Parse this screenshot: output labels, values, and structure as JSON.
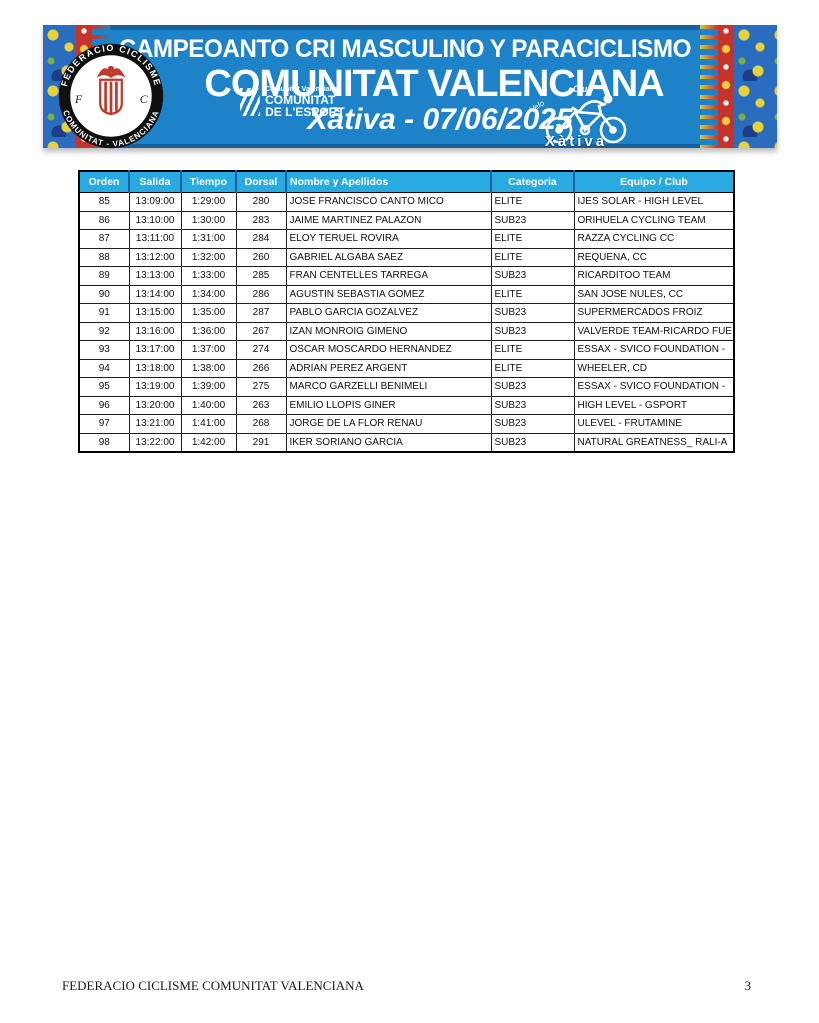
{
  "banner": {
    "line1": "CAMPEOANTO CRI MASCULINO Y PARACICLISMO",
    "line2": "COMUNITAT VALENCIANA",
    "line3": "Xàtiva - 07/06/2025",
    "federation_logo": {
      "arc_top": "FEDERACIO CICLISME",
      "arc_bottom": "COMUNITAT - VALENCIANA",
      "letter_left": "F",
      "letter_right": "C"
    },
    "esport_logo": {
      "small": "Comunitat Valenciana",
      "line1": "COMUNITAT",
      "line2": "DE L'ESPORT"
    },
    "club_logo": {
      "word_top": "Club",
      "word_left": "Velo",
      "name": "Xàtiva"
    },
    "colors": {
      "banner_blue": "#1e82c8",
      "header_blue": "#29abe2",
      "ornament_red": "#c5342b",
      "floral_yellow": "#e8d23a"
    }
  },
  "table": {
    "headers": [
      "Orden",
      "Salida",
      "Tiempo",
      "Dorsal",
      "Nombre y Apellidos",
      "Categoria",
      "Equipo / Club"
    ],
    "rows": [
      [
        "85",
        "13:09:00",
        "1:29:00",
        "280",
        "JOSE FRANCISCO CANTO MICO",
        "ELITE",
        "IJES SOLAR - HIGH LEVEL"
      ],
      [
        "86",
        "13:10:00",
        "1:30:00",
        "283",
        "JAIME MARTINEZ PALAZON",
        "SUB23",
        "ORIHUELA CYCLING TEAM"
      ],
      [
        "87",
        "13:11:00",
        "1:31:00",
        "284",
        "ELOY TERUEL ROVIRA",
        "ELITE",
        "RAZZA CYCLING CC"
      ],
      [
        "88",
        "13:12:00",
        "1:32:00",
        "260",
        "GABRIEL ALGABA SAEZ",
        "ELITE",
        "REQUENA, CC"
      ],
      [
        "89",
        "13:13:00",
        "1:33:00",
        "285",
        "FRAN CENTELLES TARREGA",
        "SUB23",
        "RICARDITOO TEAM"
      ],
      [
        "90",
        "13:14:00",
        "1:34:00",
        "286",
        "AGUSTIN SEBASTIA GOMEZ",
        "ELITE",
        "SAN JOSE NULES, CC"
      ],
      [
        "91",
        "13:15:00",
        "1:35:00",
        "287",
        "PABLO GARCIA GOZALVEZ",
        "SUB23",
        "SUPERMERCADOS FROIZ"
      ],
      [
        "92",
        "13:16:00",
        "1:36:00",
        "267",
        "IZAN MONROIG GIMENO",
        "SUB23",
        "VALVERDE TEAM-RICARDO FUE"
      ],
      [
        "93",
        "13:17:00",
        "1:37:00",
        "274",
        "OSCAR MOSCARDO HERNANDEZ",
        "ELITE",
        "ESSAX - SVICO FOUNDATION -"
      ],
      [
        "94",
        "13:18:00",
        "1:38:00",
        "266",
        "ADRIAN PEREZ ARGENT",
        "ELITE",
        "WHEELER, CD"
      ],
      [
        "95",
        "13:19:00",
        "1:39:00",
        "275",
        "MARCO GARZELLI BENIMELI",
        "SUB23",
        "ESSAX - SVICO FOUNDATION -"
      ],
      [
        "96",
        "13:20:00",
        "1:40:00",
        "263",
        "EMILIO LLOPIS GINER",
        "SUB23",
        "HIGH LEVEL - GSPORT"
      ],
      [
        "97",
        "13:21:00",
        "1:41:00",
        "268",
        "JORGE DE LA FLOR RENAU",
        "SUB23",
        "ULEVEL - FRUTAMINE"
      ],
      [
        "98",
        "13:22:00",
        "1:42:00",
        "291",
        "IKER SORIANO GARCIA",
        "SUB23",
        "NATURAL GREATNESS_ RALI-A"
      ]
    ]
  },
  "footer": {
    "left": "FEDERACIO CICLISME COMUNITAT VALENCIANA",
    "page_number": "3"
  }
}
